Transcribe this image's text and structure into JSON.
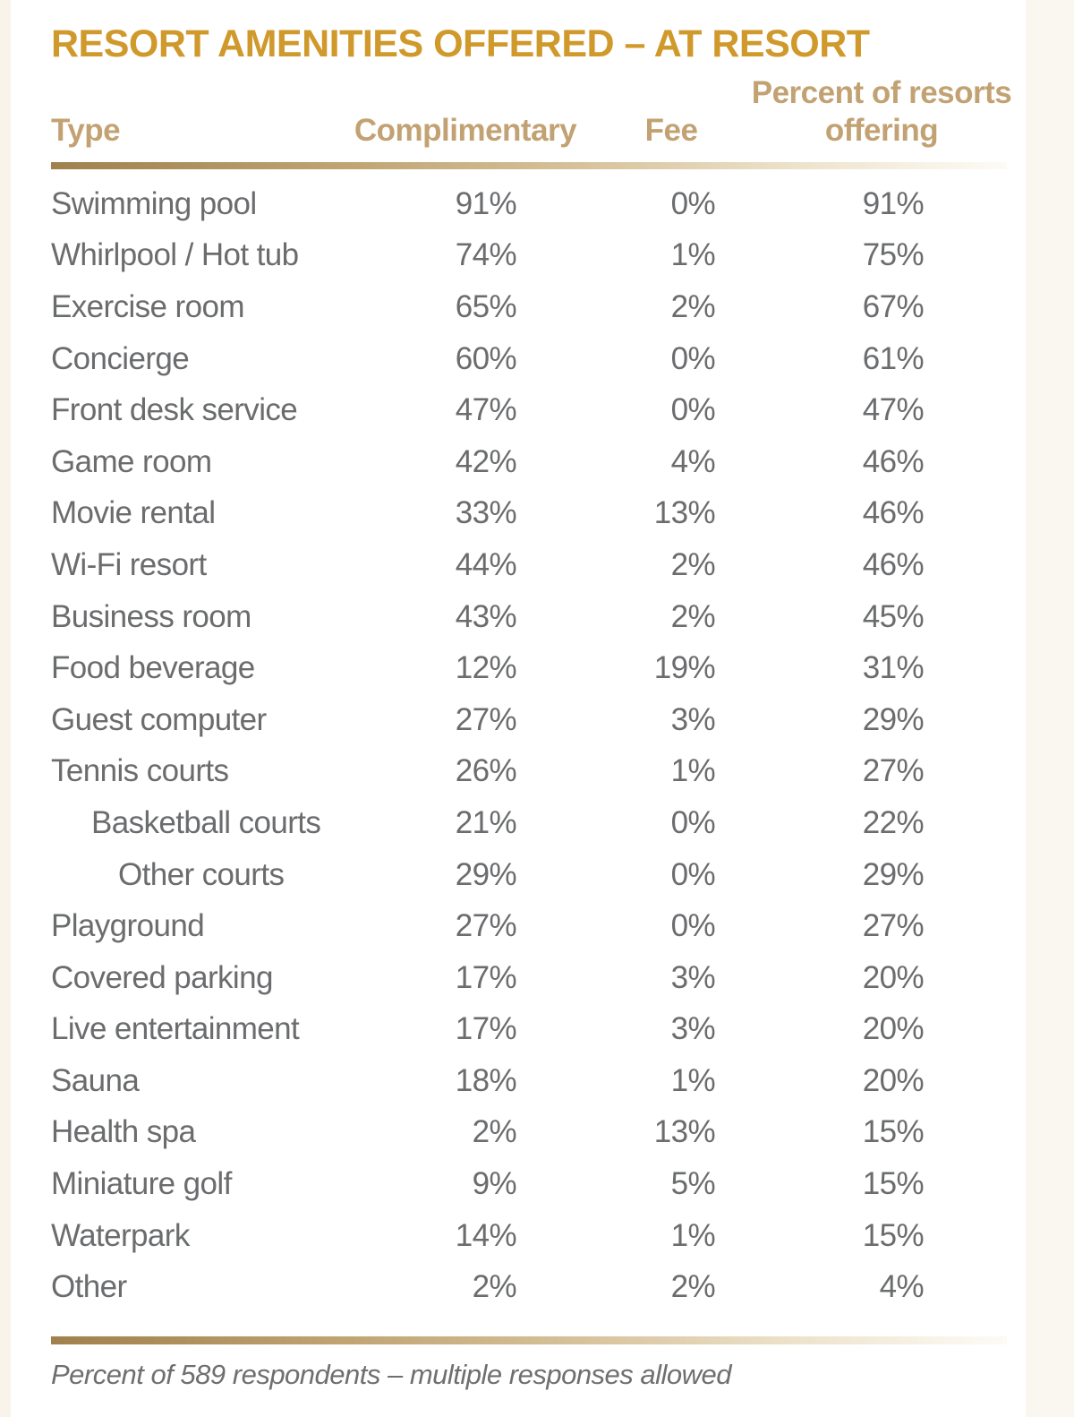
{
  "title": "RESORT AMENITIES OFFERED – AT RESORT",
  "footnote": "Percent of 589 respondents – multiple responses allowed",
  "colors": {
    "title_gold": "#D0992B",
    "header_tan": "#C2A273",
    "body_gray": "#6B6C6E",
    "rule_gradient_start": "#A0804C",
    "rule_gradient_end": "#FDFBF7",
    "background": "#FFFFFF"
  },
  "table": {
    "headers": {
      "type": "Type",
      "complimentary": "Complimentary",
      "fee": "Fee",
      "offering": "Percent of resorts offering"
    },
    "rows": [
      {
        "label": "Swimming pool",
        "indent": 0,
        "complimentary": "91%",
        "fee": "0%",
        "offering": "91%"
      },
      {
        "label": "Whirlpool / Hot tub",
        "indent": 0,
        "complimentary": "74%",
        "fee": "1%",
        "offering": "75%"
      },
      {
        "label": "Exercise room",
        "indent": 0,
        "complimentary": "65%",
        "fee": "2%",
        "offering": "67%"
      },
      {
        "label": "Concierge",
        "indent": 0,
        "complimentary": "60%",
        "fee": "0%",
        "offering": "61%"
      },
      {
        "label": "Front desk service",
        "indent": 0,
        "complimentary": "47%",
        "fee": "0%",
        "offering": "47%"
      },
      {
        "label": "Game room",
        "indent": 0,
        "complimentary": "42%",
        "fee": "4%",
        "offering": "46%"
      },
      {
        "label": "Movie rental",
        "indent": 0,
        "complimentary": "33%",
        "fee": "13%",
        "offering": "46%"
      },
      {
        "label": "Wi-Fi resort",
        "indent": 0,
        "complimentary": "44%",
        "fee": "2%",
        "offering": "46%"
      },
      {
        "label": "Business room",
        "indent": 0,
        "complimentary": "43%",
        "fee": "2%",
        "offering": "45%"
      },
      {
        "label": "Food beverage",
        "indent": 0,
        "complimentary": "12%",
        "fee": "19%",
        "offering": "31%"
      },
      {
        "label": "Guest computer",
        "indent": 0,
        "complimentary": "27%",
        "fee": "3%",
        "offering": "29%"
      },
      {
        "label": "Tennis courts",
        "indent": 0,
        "complimentary": "26%",
        "fee": "1%",
        "offering": "27%"
      },
      {
        "label": "Basketball courts",
        "indent": 1,
        "complimentary": "21%",
        "fee": "0%",
        "offering": "22%"
      },
      {
        "label": "Other courts",
        "indent": 2,
        "complimentary": "29%",
        "fee": "0%",
        "offering": "29%"
      },
      {
        "label": "Playground",
        "indent": 0,
        "complimentary": "27%",
        "fee": "0%",
        "offering": "27%"
      },
      {
        "label": "Covered parking",
        "indent": 0,
        "complimentary": "17%",
        "fee": "3%",
        "offering": "20%"
      },
      {
        "label": "Live entertainment",
        "indent": 0,
        "complimentary": "17%",
        "fee": "3%",
        "offering": "20%"
      },
      {
        "label": "Sauna",
        "indent": 0,
        "complimentary": "18%",
        "fee": "1%",
        "offering": "20%"
      },
      {
        "label": "Health spa",
        "indent": 0,
        "complimentary": "2%",
        "fee": "13%",
        "offering": "15%"
      },
      {
        "label": "Miniature golf",
        "indent": 0,
        "complimentary": "9%",
        "fee": "5%",
        "offering": "15%"
      },
      {
        "label": "Waterpark",
        "indent": 0,
        "complimentary": "14%",
        "fee": "1%",
        "offering": "15%"
      },
      {
        "label": "Other",
        "indent": 0,
        "complimentary": "2%",
        "fee": "2%",
        "offering": "4%"
      }
    ]
  },
  "chart_data": {
    "type": "table",
    "title": "RESORT AMENITIES OFFERED – AT RESORT",
    "columns": [
      "Type",
      "Complimentary",
      "Fee",
      "Percent of resorts offering"
    ],
    "rows": [
      [
        "Swimming pool",
        91,
        0,
        91
      ],
      [
        "Whirlpool / Hot tub",
        74,
        1,
        75
      ],
      [
        "Exercise room",
        65,
        2,
        67
      ],
      [
        "Concierge",
        60,
        0,
        61
      ],
      [
        "Front desk service",
        47,
        0,
        47
      ],
      [
        "Game room",
        42,
        4,
        46
      ],
      [
        "Movie rental",
        33,
        13,
        46
      ],
      [
        "Wi-Fi resort",
        44,
        2,
        46
      ],
      [
        "Business room",
        43,
        2,
        45
      ],
      [
        "Food beverage",
        12,
        19,
        31
      ],
      [
        "Guest computer",
        27,
        3,
        29
      ],
      [
        "Tennis courts",
        26,
        1,
        27
      ],
      [
        "Basketball courts",
        21,
        0,
        22
      ],
      [
        "Other courts",
        29,
        0,
        29
      ],
      [
        "Playground",
        27,
        0,
        27
      ],
      [
        "Covered parking",
        17,
        3,
        20
      ],
      [
        "Live entertainment",
        17,
        3,
        20
      ],
      [
        "Sauna",
        18,
        1,
        20
      ],
      [
        "Health spa",
        2,
        13,
        15
      ],
      [
        "Miniature golf",
        9,
        5,
        15
      ],
      [
        "Waterpark",
        14,
        1,
        15
      ],
      [
        "Other",
        2,
        2,
        4
      ]
    ],
    "units": "percent",
    "footnote": "Percent of 589 respondents – multiple responses allowed"
  }
}
